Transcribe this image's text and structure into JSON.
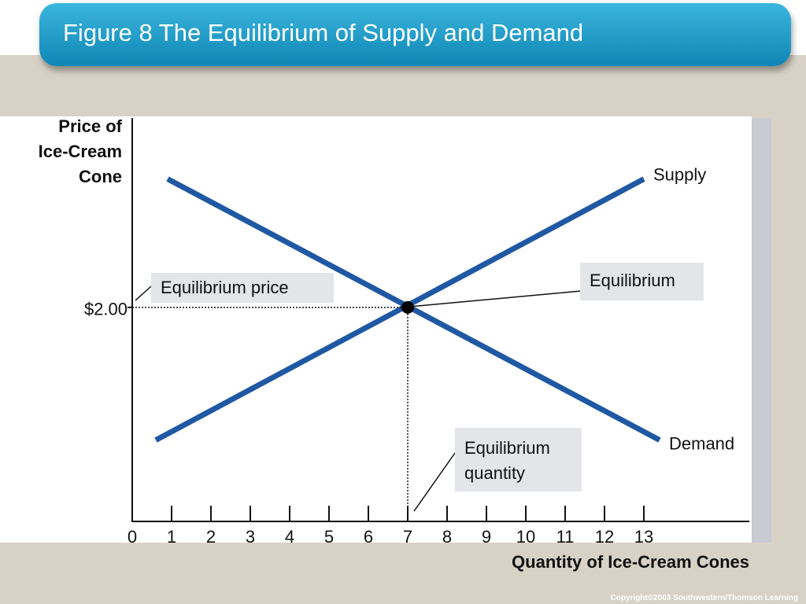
{
  "chart_data": {
    "type": "line",
    "title": "Figure 8 The Equilibrium of Supply and Demand",
    "y_label": "Price of Ice-Cream Cone",
    "x_label": "Quantity of Ice-Cream Cones",
    "series": [
      {
        "name": "Supply",
        "color": "#1f58a3",
        "x": [
          0.6,
          13
        ],
        "values": [
          0.76,
          3.2
        ]
      },
      {
        "name": "Demand",
        "color": "#1f58a3",
        "x": [
          0.9,
          13.4
        ],
        "values": [
          3.2,
          0.76
        ]
      }
    ],
    "equilibrium": {
      "x": 7,
      "y": 2
    },
    "annotations": [
      "Equilibrium price",
      "Equilibrium",
      "Equilibrium quantity"
    ],
    "xlim": [
      0,
      15.7
    ],
    "ylim": [
      0,
      3.77
    ],
    "xticks": [
      0,
      1,
      2,
      3,
      4,
      5,
      6,
      7,
      8,
      9,
      10,
      11,
      12,
      13
    ],
    "yticks": [
      {
        "value": 2,
        "label": "$2.00"
      }
    ],
    "footer": "Copyright©2003  Southwestern/Thomson Learning"
  }
}
